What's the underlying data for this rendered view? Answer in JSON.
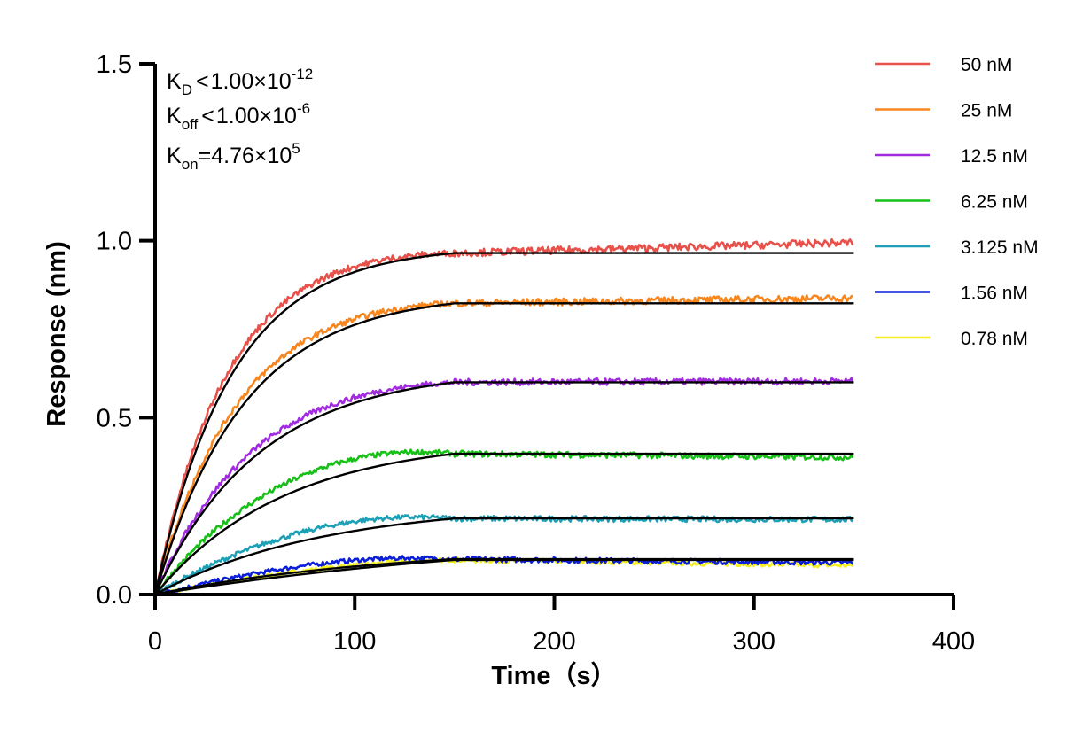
{
  "chart_data": {
    "type": "line",
    "xlabel": "Time（s）",
    "ylabel": "Response (nm)",
    "xlim": [
      0,
      400
    ],
    "ylim": [
      0,
      1.5
    ],
    "x_ticks": [
      "0",
      "100",
      "200",
      "300",
      "400"
    ],
    "y_ticks": [
      "0.0",
      "0.5",
      "1.0",
      "1.5"
    ],
    "grid": false,
    "legend_position": "top-right",
    "association_end_s": 150,
    "dissociation_end_s": 350,
    "annotations": {
      "kd": {
        "base": "K",
        "sub": "D",
        "rel": "<",
        "mant": "1.00×10",
        "exp": "-12"
      },
      "koff": {
        "base": "K",
        "sub": "off",
        "rel": "<",
        "mant": "1.00×10",
        "exp": "-6"
      },
      "kon": {
        "base": "K",
        "sub": "on",
        "rel": "=",
        "mant": "4.76×10",
        "exp": "5"
      }
    },
    "fit_color": "#000000",
    "series": [
      {
        "name": "50 nM",
        "color": "#e8504a",
        "plateau": 0.965,
        "end": 0.995
      },
      {
        "name": "25 nM",
        "color": "#f7861e",
        "plateau": 0.823,
        "end": 0.838
      },
      {
        "name": "12.5 nM",
        "color": "#a12be0",
        "plateau": 0.6,
        "end": 0.603
      },
      {
        "name": "6.25 nM",
        "color": "#17c017",
        "plateau": 0.398,
        "end": 0.388
      },
      {
        "name": "3.125 nM",
        "color": "#1d9fb5",
        "plateau": 0.215,
        "end": 0.212
      },
      {
        "name": "1.56 nM",
        "color": "#0b1ed9",
        "plateau": 0.1,
        "end": 0.09
      },
      {
        "name": "0.78 nM",
        "color": "#f6ef1f",
        "plateau": 0.098,
        "end": 0.082
      }
    ]
  }
}
